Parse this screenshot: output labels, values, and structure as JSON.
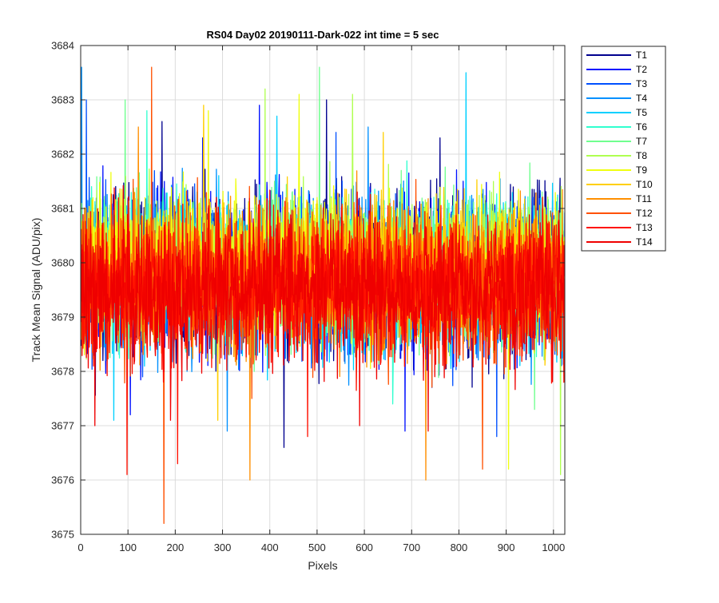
{
  "chart_data": {
    "type": "line",
    "title": "RS04 Day02 20190111-Dark-022 int time = 5 sec",
    "xlabel": "Pixels",
    "ylabel": "Track Mean Signal (ADU/pix)",
    "xlim": [
      0,
      1024
    ],
    "ylim": [
      3675,
      3684
    ],
    "xticks": [
      0,
      100,
      200,
      300,
      400,
      500,
      600,
      700,
      800,
      900,
      1000
    ],
    "yticks": [
      3675,
      3676,
      3677,
      3678,
      3679,
      3680,
      3681,
      3682,
      3683,
      3684
    ],
    "grid": true,
    "legend_position": "outside-top-right",
    "x": {
      "start": 1,
      "end": 1024,
      "step": 1
    },
    "series": [
      {
        "name": "T1",
        "color": "#00008f",
        "mean": 3679.8,
        "spread": 1.05,
        "seed": 11,
        "spikes": [
          [
            172,
            3682.6
          ],
          [
            430,
            3676.6
          ],
          [
            520,
            3683.0
          ],
          [
            760,
            3682.3
          ]
        ]
      },
      {
        "name": "T2",
        "color": "#0010ff",
        "mean": 3679.8,
        "spread": 1.05,
        "seed": 23,
        "spikes": [
          [
            105,
            3677.2
          ],
          [
            258,
            3682.3
          ],
          [
            378,
            3682.9
          ],
          [
            686,
            3676.9
          ]
        ]
      },
      {
        "name": "T3",
        "color": "#0050ff",
        "mean": 3679.8,
        "spread": 1.0,
        "seed": 37,
        "spikes": [
          [
            12,
            3683.0
          ],
          [
            540,
            3682.4
          ],
          [
            880,
            3676.8
          ]
        ]
      },
      {
        "name": "T4",
        "color": "#0090ff",
        "mean": 3679.8,
        "spread": 1.0,
        "seed": 41,
        "spikes": [
          [
            2,
            3683.6
          ],
          [
            310,
            3676.9
          ],
          [
            608,
            3682.5
          ]
        ]
      },
      {
        "name": "T5",
        "color": "#00d0ff",
        "mean": 3679.8,
        "spread": 0.95,
        "seed": 53,
        "spikes": [
          [
            815,
            3683.5
          ],
          [
            70,
            3677.1
          ],
          [
            415,
            3682.7
          ]
        ]
      },
      {
        "name": "T6",
        "color": "#30ffcf",
        "mean": 3679.9,
        "spread": 0.95,
        "seed": 67,
        "spikes": [
          [
            140,
            3682.8
          ],
          [
            660,
            3677.4
          ]
        ]
      },
      {
        "name": "T7",
        "color": "#70ff8f",
        "mean": 3679.9,
        "spread": 0.95,
        "seed": 71,
        "spikes": [
          [
            505,
            3683.6
          ],
          [
            94,
            3683.0
          ],
          [
            960,
            3677.3
          ]
        ]
      },
      {
        "name": "T8",
        "color": "#afff50",
        "mean": 3680.0,
        "spread": 0.9,
        "seed": 83,
        "spikes": [
          [
            390,
            3683.2
          ],
          [
            575,
            3683.1
          ],
          [
            1015,
            3676.1
          ]
        ]
      },
      {
        "name": "T9",
        "color": "#efff10",
        "mean": 3680.0,
        "spread": 0.9,
        "seed": 97,
        "spikes": [
          [
            270,
            3682.8
          ],
          [
            905,
            3676.2
          ],
          [
            462,
            3683.1
          ]
        ]
      },
      {
        "name": "T10",
        "color": "#ffcf00",
        "mean": 3679.9,
        "spread": 0.9,
        "seed": 101,
        "spikes": [
          [
            260,
            3682.9
          ],
          [
            640,
            3682.4
          ],
          [
            290,
            3677.1
          ]
        ]
      },
      {
        "name": "T11",
        "color": "#ff8f00",
        "mean": 3679.7,
        "spread": 0.95,
        "seed": 113,
        "spikes": [
          [
            358,
            3676.0
          ],
          [
            730,
            3676.0
          ],
          [
            122,
            3682.5
          ]
        ]
      },
      {
        "name": "T12",
        "color": "#ff5000",
        "mean": 3679.6,
        "spread": 0.95,
        "seed": 127,
        "spikes": [
          [
            150,
            3683.6
          ],
          [
            176,
            3675.2
          ],
          [
            850,
            3676.2
          ]
        ]
      },
      {
        "name": "T13",
        "color": "#ff1000",
        "mean": 3679.5,
        "spread": 0.95,
        "seed": 131,
        "spikes": [
          [
            98,
            3676.1
          ],
          [
            205,
            3676.3
          ],
          [
            480,
            3676.8
          ]
        ]
      },
      {
        "name": "T14",
        "color": "#ef0000",
        "mean": 3679.5,
        "spread": 0.95,
        "seed": 139,
        "spikes": [
          [
            30,
            3677.0
          ],
          [
            190,
            3677.1
          ],
          [
            590,
            3677.0
          ],
          [
            735,
            3676.9
          ]
        ]
      }
    ]
  }
}
